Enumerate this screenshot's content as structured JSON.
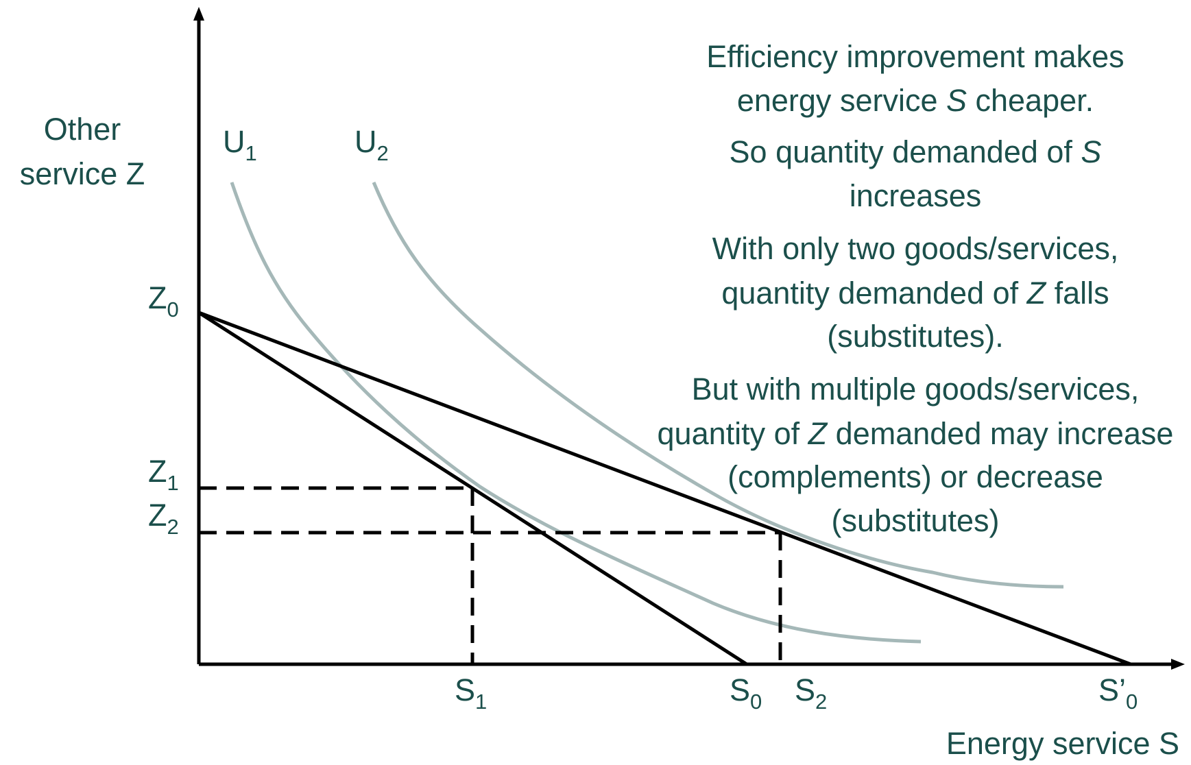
{
  "axes": {
    "y_label": [
      "Other",
      "service Z"
    ],
    "x_label": "Energy service S"
  },
  "curves": [
    {
      "main": "U",
      "sub": "1"
    },
    {
      "main": "U",
      "sub": "2"
    }
  ],
  "y_marks": [
    {
      "main": "Z",
      "sub": "0"
    },
    {
      "main": "Z",
      "sub": "1"
    },
    {
      "main": "Z",
      "sub": "2"
    }
  ],
  "x_marks": [
    {
      "main": "S",
      "sub": "1"
    },
    {
      "main": "S",
      "sub": "0"
    },
    {
      "main": "S",
      "sub": "2"
    },
    {
      "main": "S’",
      "sub": "0"
    }
  ],
  "notes": [
    [
      "Efficiency improvement makes"
    ],
    [
      "energy service ",
      "S",
      " cheaper."
    ],
    [
      "So quantity demanded of ",
      "S"
    ],
    [
      "increases"
    ],
    [
      "With only two goods/services,"
    ],
    [
      "quantity demanded of ",
      "Z",
      " falls"
    ],
    [
      "(substitutes)."
    ],
    [
      "But with multiple goods/services,"
    ],
    [
      "quantity of ",
      "Z",
      " demanded may increase"
    ],
    [
      "(complements) or decrease"
    ],
    [
      "(substitutes)"
    ]
  ]
}
